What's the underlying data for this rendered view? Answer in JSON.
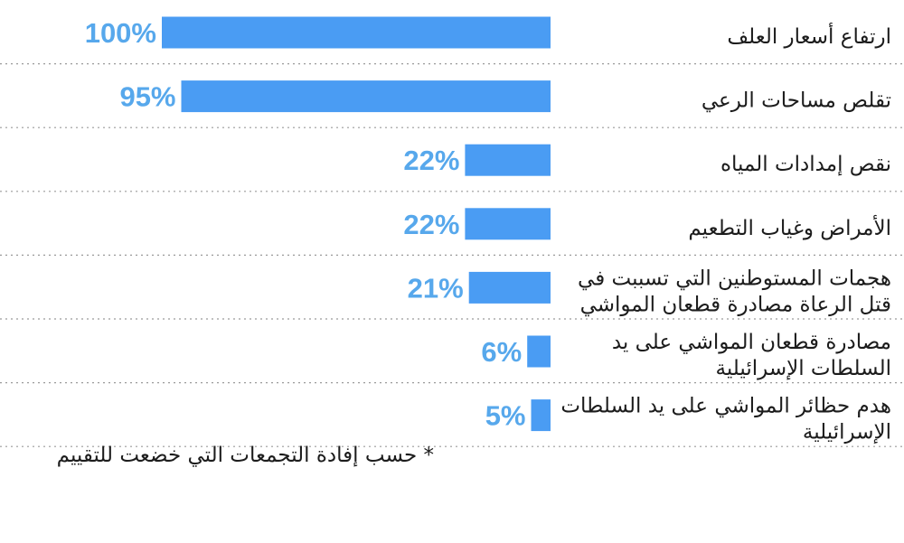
{
  "chart_data": {
    "type": "bar",
    "orientation": "horizontal",
    "categories": [
      [
        "ارتفاع أسعار العلف"
      ],
      [
        "تقلص مساحات الرعي"
      ],
      [
        "نقص إمدادات المياه"
      ],
      [
        "الأمراض وغياب التطعيم"
      ],
      [
        "هجمات المستوطنين التي تسببت في",
        "قتل الرعاة مصادرة قطعان المواشي"
      ],
      [
        "مصادرة قطعان المواشي على يد",
        "السلطات الإسرائيلية"
      ],
      [
        "هدم حظائر المواشي على يد السلطات",
        "الإسرائيلية"
      ]
    ],
    "values": [
      100,
      95,
      22,
      22,
      21,
      6,
      5
    ],
    "value_labels": [
      "100%",
      "95%",
      "22%",
      "22%",
      "21%",
      "6%",
      "5%"
    ],
    "xlim": [
      0,
      100
    ],
    "bar_color": "#4a9cf3",
    "value_label_color": "#57a8ec",
    "separator_color": "#9a9a9a",
    "grid": false,
    "legend": "none",
    "footnote": "* حسب إفادة التجمعات التي خضعت للتقييم"
  }
}
